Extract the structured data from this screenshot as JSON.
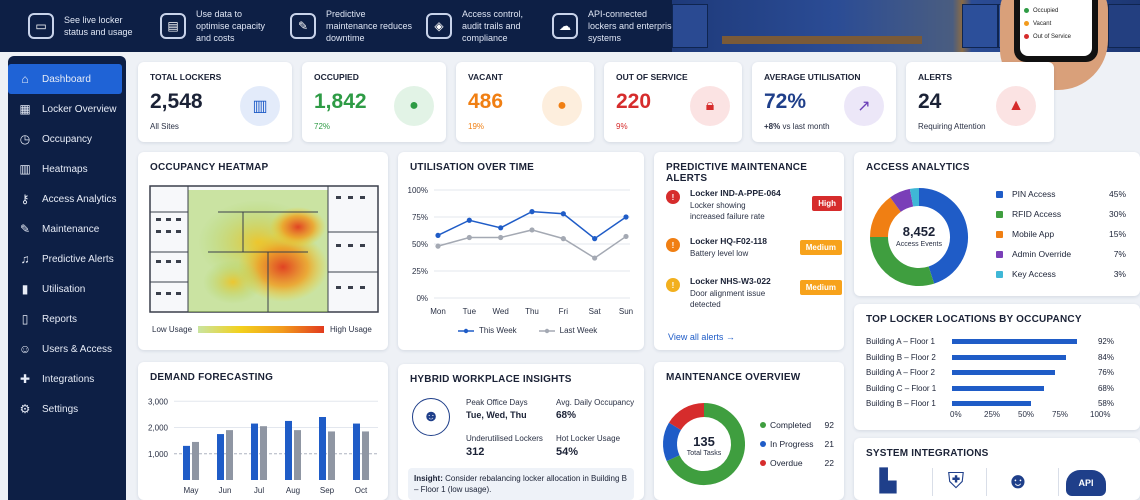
{
  "banner": {
    "items": [
      {
        "icon": "monitor-icon",
        "text": "See live locker status and usage"
      },
      {
        "icon": "chart-icon",
        "text": "Use data to optimise capacity and costs"
      },
      {
        "icon": "wrench-icon",
        "text": "Predictive maintenance reduces downtime"
      },
      {
        "icon": "shield-icon",
        "text": "Access control, audit trails and compliance"
      },
      {
        "icon": "cloud-icon",
        "text": "API-connected lockers and enterprise systems"
      }
    ]
  },
  "phone": {
    "legend": [
      {
        "label": "Occupied",
        "color": "#2e9b45"
      },
      {
        "label": "Vacant",
        "color": "#f29b1d"
      },
      {
        "label": "Out of Service",
        "color": "#d62c2c"
      }
    ]
  },
  "sidebar": {
    "items": [
      {
        "label": "Dashboard",
        "icon": "home-icon",
        "active": true
      },
      {
        "label": "Locker Overview",
        "icon": "grid-icon"
      },
      {
        "label": "Occupancy",
        "icon": "clock-icon"
      },
      {
        "label": "Heatmaps",
        "icon": "heatmap-icon"
      },
      {
        "label": "Access Analytics",
        "icon": "key-icon"
      },
      {
        "label": "Maintenance",
        "icon": "wrench-icon"
      },
      {
        "label": "Predictive Alerts",
        "icon": "bell-icon"
      },
      {
        "label": "Utilisation",
        "icon": "barchart-icon"
      },
      {
        "label": "Reports",
        "icon": "document-icon"
      },
      {
        "label": "Users & Access",
        "icon": "users-icon"
      },
      {
        "label": "Integrations",
        "icon": "puzzle-icon"
      },
      {
        "label": "Settings",
        "icon": "gear-icon"
      }
    ]
  },
  "kpis": [
    {
      "title": "TOTAL LOCKERS",
      "value": "2,548",
      "sub": "All Sites",
      "color": "#1b2236",
      "sub_color": "#2a3145",
      "icon": "locker-icon",
      "icon_bg": "#e3ebfa",
      "icon_color": "#1f5cc7"
    },
    {
      "title": "OCCUPIED",
      "value": "1,842",
      "sub": "72%",
      "color": "#2e9b45",
      "sub_color": "#2e9b45",
      "icon": "user-icon",
      "icon_bg": "#e2f3e6",
      "icon_color": "#2e9b45"
    },
    {
      "title": "VACANT",
      "value": "486",
      "sub": "19%",
      "color": "#f07f13",
      "sub_color": "#f07f13",
      "icon": "user-icon",
      "icon_bg": "#fdeedd",
      "icon_color": "#f07f13"
    },
    {
      "title": "OUT OF SERVICE",
      "value": "220",
      "sub": "9%",
      "color": "#d62c2c",
      "sub_color": "#d62c2c",
      "icon": "lock-icon",
      "icon_bg": "#fbe3e3",
      "icon_color": "#d62c2c"
    },
    {
      "title": "AVERAGE UTILISATION",
      "value": "72%",
      "sub": "+8% vs last month",
      "sub_bold": "+8%",
      "sub_rest": " vs last month",
      "color": "#1f3f8a",
      "sub_color": "#2a3145",
      "icon": "trend-icon",
      "icon_bg": "#ece7f8",
      "icon_color": "#6b3fb8"
    },
    {
      "title": "ALERTS",
      "value": "24",
      "sub": "Requiring Attention",
      "color": "#1b2236",
      "sub_color": "#2a3145",
      "icon": "warning-icon",
      "icon_bg": "#fbe3e3",
      "icon_color": "#d62c2c"
    }
  ],
  "heatmap": {
    "title": "OCCUPANCY HEATMAP",
    "low_label": "Low Usage",
    "high_label": "High Usage"
  },
  "utilisation": {
    "title": "UTILISATION OVER TIME",
    "legend_this": "This Week",
    "legend_last": "Last Week"
  },
  "alerts": {
    "title": "PREDICTIVE MAINTENANCE ALERTS",
    "items": [
      {
        "name": "Locker IND-A-PPE-064",
        "desc": "Locker showing increased failure rate",
        "severity": "High",
        "color": "#d62c2c",
        "badge_bg": "#d62c2c",
        "badge_fg": "#ffffff"
      },
      {
        "name": "Locker HQ-F02-118",
        "desc": "Battery level low",
        "severity": "Medium",
        "color": "#f07f13",
        "badge_bg": "#f7a21b",
        "badge_fg": "#ffffff"
      },
      {
        "name": "Locker NHS-W3-022",
        "desc": "Door alignment issue detected",
        "severity": "Medium",
        "color": "#f2b01e",
        "badge_bg": "#f7a21b",
        "badge_fg": "#ffffff"
      }
    ],
    "view_all": "View all alerts"
  },
  "access": {
    "title": "ACCESS ANALYTICS",
    "center_value": "8,452",
    "center_label": "Access Events",
    "items": [
      {
        "label": "PIN Access",
        "pct": "45%",
        "value": 45,
        "color": "#1f5cc7"
      },
      {
        "label": "RFID Access",
        "pct": "30%",
        "value": 30,
        "color": "#3f9e3f"
      },
      {
        "label": "Mobile App",
        "pct": "15%",
        "value": 15,
        "color": "#f07f13"
      },
      {
        "label": "Admin Override",
        "pct": "7%",
        "value": 7,
        "color": "#7a3fb8"
      },
      {
        "label": "Key Access",
        "pct": "3%",
        "value": 3,
        "color": "#3fb7d6"
      }
    ]
  },
  "top_locations": {
    "title": "TOP LOCKER LOCATIONS BY OCCUPANCY",
    "items": [
      {
        "label": "Building A – Floor 1",
        "pct": "92%",
        "value": 0.92
      },
      {
        "label": "Building B – Floor 2",
        "pct": "84%",
        "value": 0.84
      },
      {
        "label": "Building A – Floor 2",
        "pct": "76%",
        "value": 0.76
      },
      {
        "label": "Building C – Floor 1",
        "pct": "68%",
        "value": 0.68
      },
      {
        "label": "Building B – Floor 1",
        "pct": "58%",
        "value": 0.58
      }
    ],
    "axis": [
      "0%",
      "25%",
      "50%",
      "75%",
      "100%"
    ]
  },
  "forecast": {
    "title": "DEMAND FORECASTING"
  },
  "insights": {
    "title": "HYBRID WORKPLACE INSIGHTS",
    "peak_label": "Peak Office Days",
    "peak_value": "Tue, Wed, Thu",
    "avg_label": "Avg. Daily Occupancy",
    "avg_value": "68%",
    "under_label": "Underutilised Lockers",
    "under_value": "312",
    "hot_label": "Hot Locker Usage",
    "hot_value": "54%",
    "insight_bold": "Insight:",
    "insight_text": "Consider rebalancing locker allocation in Building B – Floor 1 (low usage)."
  },
  "maintenance": {
    "title": "MAINTENANCE OVERVIEW",
    "total": "135",
    "total_label": "Total Tasks",
    "items": [
      {
        "label": "Completed",
        "value": "92",
        "n": 92,
        "color": "#3f9e3f"
      },
      {
        "label": "In Progress",
        "value": "21",
        "n": 21,
        "color": "#1f5cc7"
      },
      {
        "label": "Overdue",
        "value": "22",
        "n": 22,
        "color": "#d62c2c"
      }
    ]
  },
  "integrations": {
    "title": "SYSTEM INTEGRATIONS",
    "items": [
      {
        "icon": "building-icon"
      },
      {
        "icon": "shield-lock-icon"
      },
      {
        "icon": "users-icon"
      },
      {
        "icon": "api-cloud-icon",
        "label": "API"
      }
    ]
  },
  "chart_data": [
    {
      "type": "line",
      "title": "UTILISATION OVER TIME",
      "categories": [
        "Mon",
        "Tue",
        "Wed",
        "Thu",
        "Fri",
        "Sat",
        "Sun"
      ],
      "series": [
        {
          "name": "This Week",
          "values": [
            58,
            72,
            65,
            80,
            78,
            55,
            75
          ],
          "color": "#1f5cc7"
        },
        {
          "name": "Last Week",
          "values": [
            48,
            56,
            56,
            63,
            55,
            37,
            57
          ],
          "color": "#a4a9b3"
        }
      ],
      "yticks": [
        "0%",
        "25%",
        "50%",
        "75%",
        "100%"
      ],
      "ylim": [
        0,
        100
      ],
      "grid": true,
      "legend": "bottom"
    },
    {
      "type": "bar",
      "title": "DEMAND FORECASTING",
      "categories": [
        "May",
        "Jun",
        "Jul",
        "Aug",
        "Sep",
        "Oct"
      ],
      "series": [
        {
          "name": "",
          "values": [
            1300,
            1750,
            2150,
            2250,
            2400,
            2150
          ],
          "color": "#1f5cc7"
        },
        {
          "name": "",
          "values": [
            1450,
            1900,
            2050,
            1900,
            1850,
            1850
          ],
          "color": "#8f96a3"
        }
      ],
      "yticks": [
        "1,000",
        "2,000",
        "3,000"
      ],
      "ylim": [
        0,
        3200
      ],
      "grid": true
    }
  ]
}
